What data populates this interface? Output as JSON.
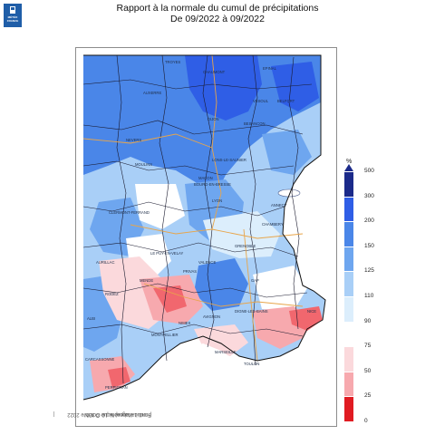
{
  "header": {
    "logo_text": "MÉTÉO FRANCE",
    "title_line1": "Rapport à la normale du cumul de précipitations",
    "title_line2": "De 09/2022 à 09/2022"
  },
  "side_note": "produit élaboré le 10 Octobre 2022",
  "side_note_fond": "Fond cartographique © IGN",
  "legend": {
    "unit": "%",
    "classes": [
      {
        "label": "500",
        "color": "#1b2a8a"
      },
      {
        "label": "300",
        "color": "#2f5ee6"
      },
      {
        "label": "200",
        "color": "#4a86e8"
      },
      {
        "label": "150",
        "color": "#6ea6ef"
      },
      {
        "label": "125",
        "color": "#a9cff7"
      },
      {
        "label": "110",
        "color": "#dceefc"
      },
      {
        "label": "90",
        "color": "#ffffff"
      },
      {
        "label": "75",
        "color": "#fbd9dc"
      },
      {
        "label": "50",
        "color": "#f7a9ae"
      },
      {
        "label": "25",
        "color": "#f1676e"
      },
      {
        "label": "0",
        "color": "#e01b22"
      }
    ]
  },
  "map": {
    "cities": [
      "TROYES",
      "CHAUMONT",
      "EPINAL",
      "AUXERRE",
      "VESOUL",
      "BELFORT",
      "DIJON",
      "BESANCON",
      "NEVERS",
      "MOULINS",
      "LONS-LE-SAUNIER",
      "MACON",
      "BOURG-EN-BRESSE",
      "ANNECY",
      "CHAMBERY",
      "CLERMONT-FERRAND",
      "GRENOBLE",
      "LE PUY-EN-VELAY",
      "VALENCE",
      "PRIVAS",
      "GAP",
      "DIGNE-LES-BAINS",
      "MENDE",
      "NIMES",
      "AVIGNON",
      "MONTPELLIER",
      "MARSEILLE",
      "TOULON",
      "CARCASSONNE",
      "PERPIGNAN",
      "RODEZ",
      "AURILLAC",
      "ALBI",
      "LYON",
      "NICE"
    ]
  }
}
